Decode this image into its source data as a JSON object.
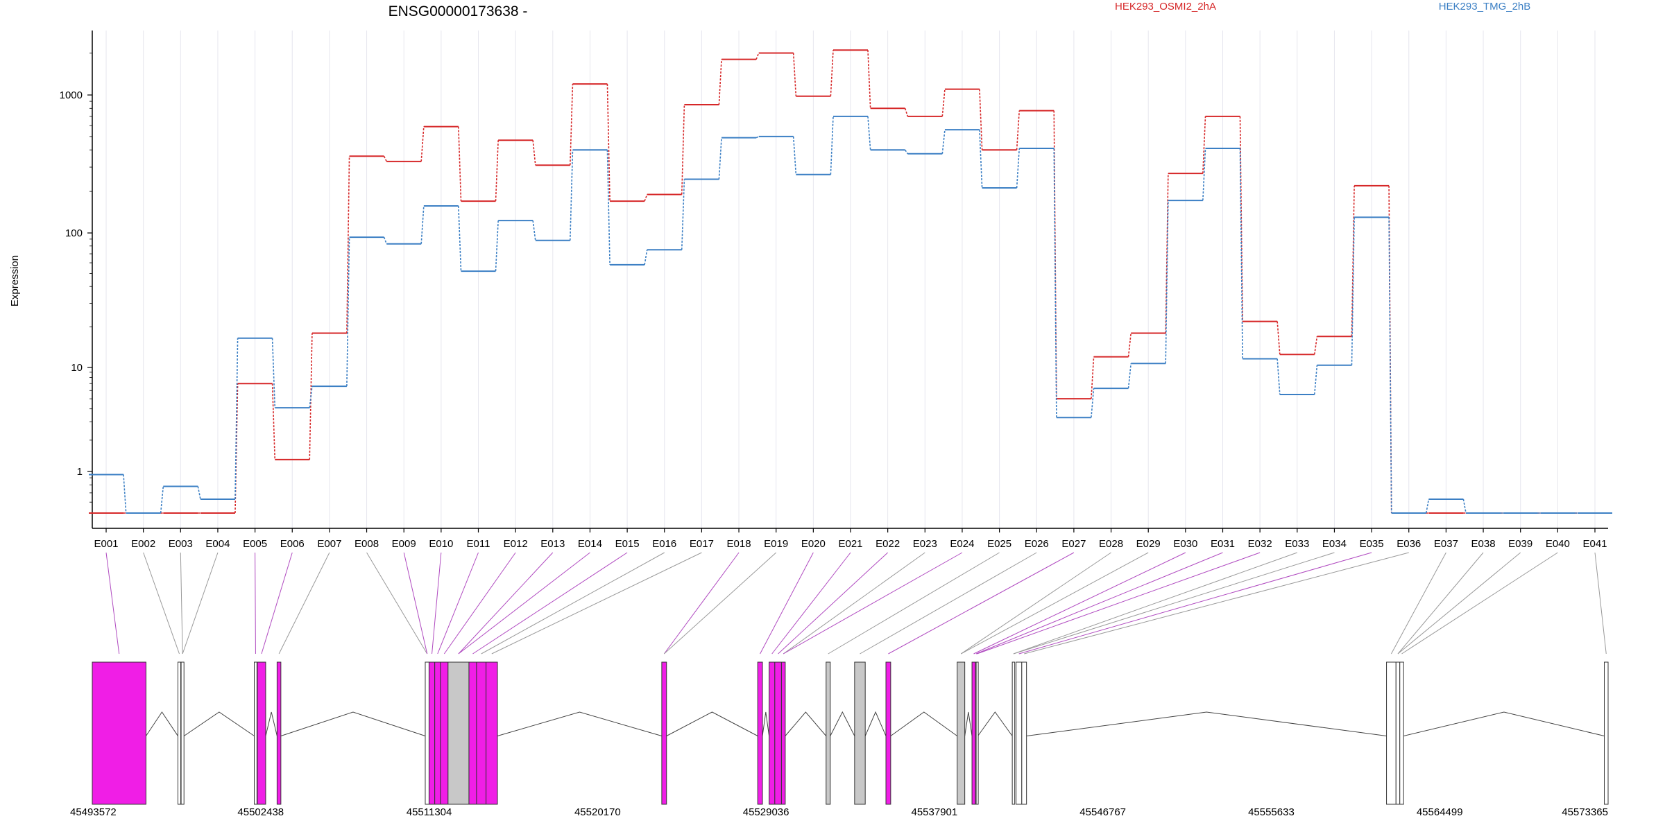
{
  "chart_data": {
    "type": "line",
    "title": "ENSG00000173638 -",
    "ylabel": "Expression",
    "yscale": "log",
    "ylim": [
      0.5,
      2900
    ],
    "yticks": [
      "1",
      "10",
      "100",
      "1000"
    ],
    "grid": "vertical",
    "legend_position": "top",
    "categories": [
      "E001",
      "E002",
      "E003",
      "E004",
      "E005",
      "E006",
      "E007",
      "E008",
      "E009",
      "E010",
      "E011",
      "E012",
      "E013",
      "E014",
      "E015",
      "E016",
      "E017",
      "E018",
      "E019",
      "E020",
      "E021",
      "E022",
      "E023",
      "E024",
      "E025",
      "E026",
      "E027",
      "E028",
      "E029",
      "E030",
      "E031",
      "E032",
      "E033",
      "E034",
      "E035",
      "E036",
      "E037",
      "E038",
      "E039",
      "E040",
      "E041"
    ],
    "series": [
      {
        "name": "HEK293_OSMI2_2hA",
        "color": "#d62728",
        "values": [
          0.5,
          0.5,
          0.5,
          0.5,
          7,
          1.3,
          18,
          360,
          330,
          590,
          170,
          470,
          310,
          1200,
          170,
          190,
          850,
          1800,
          2000,
          980,
          2100,
          800,
          700,
          1100,
          400,
          770,
          5,
          12,
          18,
          270,
          700,
          22,
          12.5,
          17,
          220,
          0.5,
          0.5,
          0.5,
          0.5,
          0.5,
          0.5
        ]
      },
      {
        "name": "HEK293_TMG_2hB",
        "color": "#3b7fc4",
        "values": [
          0.95,
          0.5,
          0.78,
          0.63,
          16.5,
          4.1,
          6.6,
          93,
          83,
          157,
          52,
          123,
          88,
          400,
          58,
          75,
          245,
          490,
          500,
          265,
          700,
          400,
          375,
          560,
          212,
          410,
          3.3,
          6.3,
          10.7,
          172,
          410,
          11.6,
          5.5,
          10.4,
          130,
          0.5,
          0.63,
          0.5,
          0.5,
          0.5,
          0.5
        ]
      }
    ]
  },
  "gene_model": {
    "coordinates": [
      "45493572",
      "45502438",
      "45511304",
      "45520170",
      "45529036",
      "45537901",
      "45546767",
      "45555633",
      "45564499",
      "45573365"
    ],
    "exon_colors": {
      "significant": "#f01ee6",
      "not_significant": "#c8c8c8",
      "outline": "#ffffff"
    },
    "exons": [
      {
        "start": 45493572,
        "end": 45496400,
        "color": "magenta"
      },
      {
        "start": 45498080,
        "end": 45498230,
        "color": "white"
      },
      {
        "start": 45498250,
        "end": 45498400,
        "color": "white"
      },
      {
        "start": 45502100,
        "end": 45502240,
        "color": "white"
      },
      {
        "start": 45502260,
        "end": 45502700,
        "color": "magenta"
      },
      {
        "start": 45503300,
        "end": 45503500,
        "color": "magenta"
      },
      {
        "start": 45511100,
        "end": 45511300,
        "color": "white"
      },
      {
        "start": 45511300,
        "end": 45511600,
        "color": "magenta"
      },
      {
        "start": 45511600,
        "end": 45511900,
        "color": "magenta"
      },
      {
        "start": 45511900,
        "end": 45512300,
        "color": "magenta"
      },
      {
        "start": 45512300,
        "end": 45513400,
        "color": "grey"
      },
      {
        "start": 45513400,
        "end": 45513800,
        "color": "magenta"
      },
      {
        "start": 45513800,
        "end": 45514300,
        "color": "magenta"
      },
      {
        "start": 45514300,
        "end": 45514900,
        "color": "magenta"
      },
      {
        "start": 45523550,
        "end": 45523800,
        "color": "magenta"
      },
      {
        "start": 45528600,
        "end": 45528850,
        "color": "magenta"
      },
      {
        "start": 45529200,
        "end": 45529500,
        "color": "magenta"
      },
      {
        "start": 45529500,
        "end": 45529850,
        "color": "magenta"
      },
      {
        "start": 45529850,
        "end": 45530050,
        "color": "magenta"
      },
      {
        "start": 45532200,
        "end": 45532420,
        "color": "grey"
      },
      {
        "start": 45533700,
        "end": 45534260,
        "color": "grey"
      },
      {
        "start": 45535350,
        "end": 45535600,
        "color": "magenta"
      },
      {
        "start": 45539100,
        "end": 45539500,
        "color": "grey"
      },
      {
        "start": 45539880,
        "end": 45540060,
        "color": "magenta"
      },
      {
        "start": 45540060,
        "end": 45540130,
        "color": "white"
      },
      {
        "start": 45540100,
        "end": 45540190,
        "color": "white"
      },
      {
        "start": 45542000,
        "end": 45542130,
        "color": "white"
      },
      {
        "start": 45542200,
        "end": 45542500,
        "color": "white"
      },
      {
        "start": 45542500,
        "end": 45542750,
        "color": "white"
      },
      {
        "start": 45561700,
        "end": 45562200,
        "color": "white"
      },
      {
        "start": 45562200,
        "end": 45562400,
        "color": "white"
      },
      {
        "start": 45562400,
        "end": 45562600,
        "color": "white"
      },
      {
        "start": 45573165,
        "end": 45573365,
        "color": "white"
      }
    ]
  }
}
